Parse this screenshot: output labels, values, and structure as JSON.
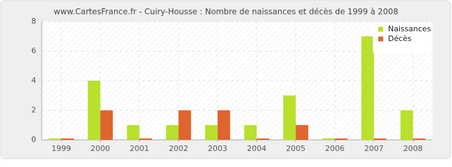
{
  "chart_data": {
    "type": "bar",
    "title": "www.CartesFrance.fr - Cuiry-Housse : Nombre de naissances et décès de 1999 à 2008",
    "categories": [
      "1999",
      "2000",
      "2001",
      "2002",
      "2003",
      "2004",
      "2005",
      "2006",
      "2007",
      "2008"
    ],
    "series": [
      {
        "name": "Naissances",
        "color": "#b8e02c",
        "values": [
          0,
          4,
          1,
          1,
          1,
          1,
          3,
          0,
          7,
          2
        ]
      },
      {
        "name": "Décès",
        "color": "#e0642e",
        "values": [
          0,
          2,
          0,
          2,
          2,
          0,
          1,
          0,
          0,
          0
        ]
      }
    ],
    "ylim": [
      0,
      8
    ],
    "yticks": [
      0,
      2,
      4,
      6,
      8
    ],
    "grid": true,
    "legend": "top-right"
  }
}
